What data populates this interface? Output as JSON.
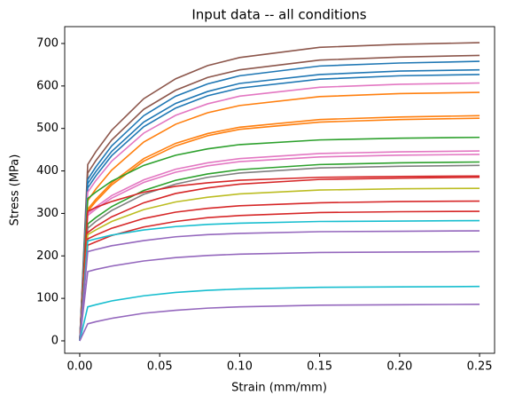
{
  "chart_data": {
    "type": "line",
    "title": "Input data -- all conditions",
    "x_label": "Strain (mm/mm)",
    "y_label": "Stress (MPa)",
    "x": [
      0,
      0.005,
      0.01,
      0.02,
      0.04,
      0.06,
      0.08,
      0.1,
      0.15,
      0.2,
      0.25
    ],
    "xlim": [
      -0.0094,
      0.2594
    ],
    "xticks": [
      {
        "value": 0,
        "label": "0.00"
      },
      {
        "value": 0.05,
        "label": "0.05"
      },
      {
        "value": 0.1,
        "label": "0.10"
      },
      {
        "value": 0.15,
        "label": "0.15"
      },
      {
        "value": 0.2,
        "label": "0.20"
      },
      {
        "value": 0.25,
        "label": "0.25"
      }
    ],
    "ylim": [
      -29.3,
      739.7
    ],
    "yticks": [
      0,
      100,
      200,
      300,
      400,
      500,
      600,
      700
    ],
    "series": [
      {
        "color": "#8c564b",
        "values": [
          0,
          415,
          445,
          496,
          570,
          617,
          648,
          667,
          691,
          698,
          702
        ]
      },
      {
        "color": "#8c564b",
        "values": [
          0,
          395,
          424,
          473,
          545,
          590,
          620,
          638,
          661,
          668,
          672
        ]
      },
      {
        "color": "#1f77b4",
        "values": [
          0,
          380,
          409,
          459,
          530,
          576,
          605,
          624,
          647,
          654,
          658
        ]
      },
      {
        "color": "#1f77b4",
        "values": [
          0,
          370,
          398,
          446,
          515,
          559,
          587,
          606,
          627,
          635,
          638
        ]
      },
      {
        "color": "#1f77b4",
        "values": [
          0,
          360,
          388,
          436,
          504,
          548,
          577,
          595,
          616,
          624,
          627
        ]
      },
      {
        "color": "#e377c2",
        "values": [
          0,
          350,
          377,
          423,
          489,
          531,
          558,
          576,
          597,
          604,
          607
        ]
      },
      {
        "color": "#ff7f0e",
        "values": [
          0,
          330,
          357,
          402,
          468,
          510,
          537,
          554,
          575,
          582,
          585
        ]
      },
      {
        "color": "#ff7f0e",
        "values": [
          0,
          310,
          333,
          372,
          429,
          465,
          488,
          503,
          521,
          527,
          530
        ]
      },
      {
        "color": "#ff7f0e",
        "values": [
          0,
          305,
          328,
          367,
          423,
          459,
          483,
          498,
          515,
          521,
          524
        ]
      },
      {
        "color": "#2ca02c",
        "values": [
          0,
          335,
          350,
          376,
          413,
          437,
          452,
          462,
          473,
          477,
          479
        ]
      },
      {
        "color": "#e377c2",
        "values": [
          0,
          300,
          315,
          342,
          379,
          404,
          419,
          429,
          441,
          445,
          447
        ]
      },
      {
        "color": "#e377c2",
        "values": [
          0,
          295,
          310,
          336,
          373,
          397,
          412,
          422,
          433,
          437,
          439
        ]
      },
      {
        "color": "#2ca02c",
        "values": [
          0,
          275,
          290,
          316,
          354,
          378,
          393,
          403,
          415,
          419,
          421
        ]
      },
      {
        "color": "#7f7f7f",
        "values": [
          0,
          265,
          281,
          307,
          345,
          369,
          385,
          395,
          407,
          411,
          413
        ]
      },
      {
        "color": "#d62728",
        "values": [
          0,
          305,
          314,
          328,
          350,
          364,
          372,
          378,
          385,
          387,
          388
        ]
      },
      {
        "color": "#d62728",
        "values": [
          0,
          255,
          269,
          292,
          325,
          347,
          360,
          369,
          380,
          383,
          385
        ]
      },
      {
        "color": "#bcbd22",
        "values": [
          0,
          250,
          261,
          281,
          309,
          327,
          338,
          346,
          355,
          358,
          359
        ]
      },
      {
        "color": "#d62728",
        "values": [
          0,
          240,
          249,
          265,
          288,
          303,
          312,
          318,
          325,
          328,
          329
        ]
      },
      {
        "color": "#d62728",
        "values": [
          0,
          225,
          233,
          248,
          268,
          281,
          290,
          295,
          302,
          304,
          305
        ]
      },
      {
        "color": "#17becf",
        "values": [
          0,
          235,
          240,
          249,
          261,
          269,
          274,
          277,
          281,
          282,
          283
        ]
      },
      {
        "color": "#9467bd",
        "values": [
          0,
          210,
          215,
          224,
          236,
          245,
          250,
          253,
          257,
          258,
          259
        ]
      },
      {
        "color": "#9467bd",
        "values": [
          0,
          163,
          168,
          176,
          188,
          196,
          201,
          204,
          208,
          209,
          210
        ]
      },
      {
        "color": "#17becf",
        "values": [
          0,
          80,
          85,
          94,
          106,
          114,
          119,
          122,
          126,
          127,
          128
        ]
      },
      {
        "color": "#9467bd",
        "values": [
          0,
          40,
          45,
          53,
          65,
          72,
          77,
          80,
          84,
          85,
          86
        ]
      }
    ]
  }
}
